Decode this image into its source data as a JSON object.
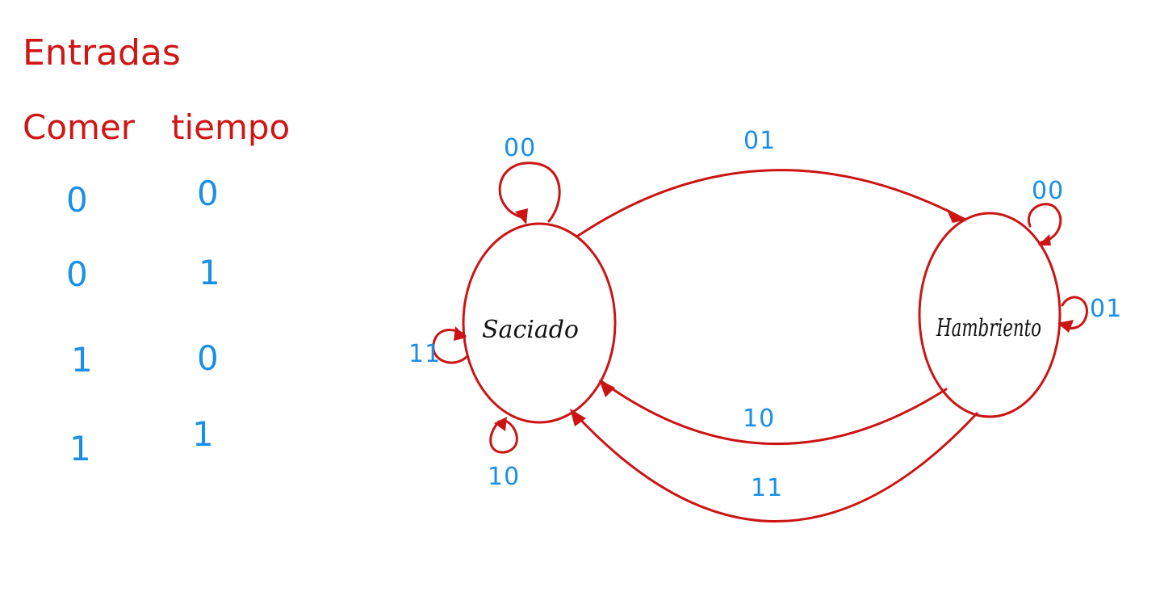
{
  "inputs": {
    "title": "Entradas",
    "headers": [
      "Comer",
      "tiempo"
    ],
    "rows": [
      [
        "0",
        "0"
      ],
      [
        "0",
        "1"
      ],
      [
        "1",
        "0"
      ],
      [
        "1",
        "1"
      ]
    ]
  },
  "states": [
    {
      "id": "saciado",
      "name": "Saciado"
    },
    {
      "id": "hambriento",
      "name": "Hambriento"
    }
  ],
  "transitions": [
    {
      "id": "saciado-self-top",
      "from": "saciado",
      "to": "saciado",
      "label": "00"
    },
    {
      "id": "saciado-self-left",
      "from": "saciado",
      "to": "saciado",
      "label": "11"
    },
    {
      "id": "saciado-self-bottom",
      "from": "saciado",
      "to": "saciado",
      "label": "10"
    },
    {
      "id": "saciado-to-hambriento",
      "from": "saciado",
      "to": "hambriento",
      "label": "01"
    },
    {
      "id": "hambriento-self-top",
      "from": "hambriento",
      "to": "hambriento",
      "label": "00"
    },
    {
      "id": "hambriento-self-right",
      "from": "hambriento",
      "to": "hambriento",
      "label": "01"
    },
    {
      "id": "hambriento-to-saciado-upper",
      "from": "hambriento",
      "to": "saciado",
      "label": "10"
    },
    {
      "id": "hambriento-to-saciado-lower",
      "from": "hambriento",
      "to": "saciado",
      "label": "11"
    }
  ],
  "colors": {
    "ink_red": "#cc1414",
    "ink_blue": "#1a8fe6",
    "ink_black": "#111111",
    "background": "#ffffff"
  }
}
